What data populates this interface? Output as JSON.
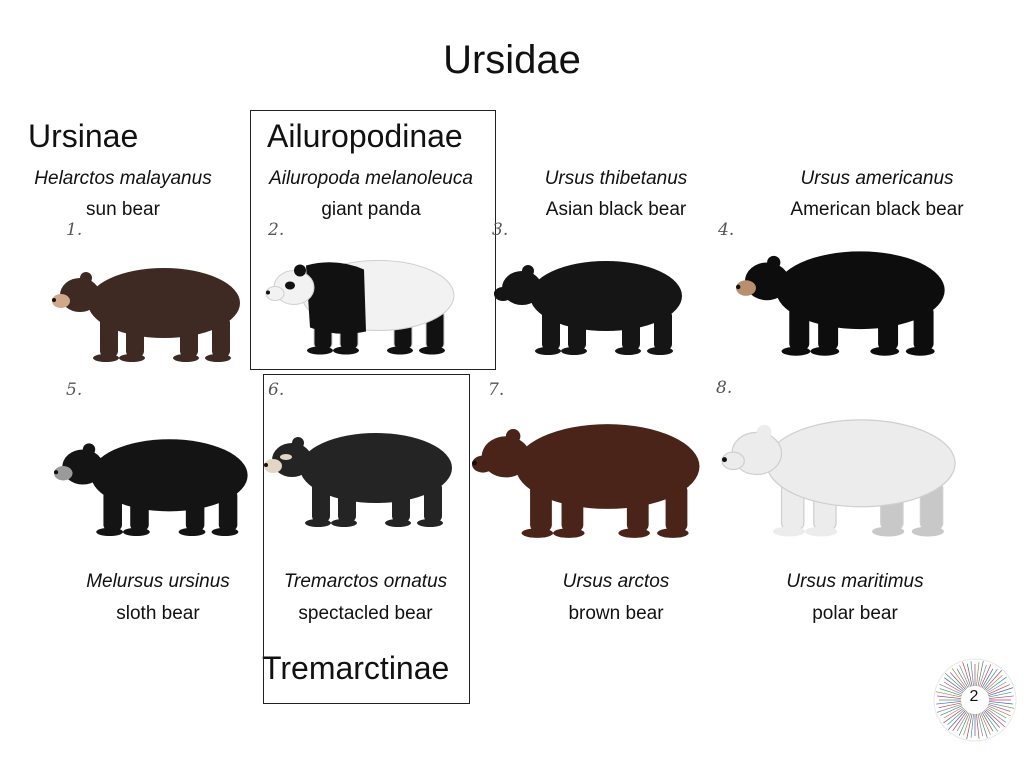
{
  "slide": {
    "title": "Ursidae",
    "page_number": "2"
  },
  "subfamilies": {
    "ursinae": "Ursinae",
    "ailuropodinae": "Ailuropodinae",
    "tremarctinae": "Tremarctinae"
  },
  "species": [
    {
      "number": "1.",
      "scientific": "Helarctos malayanus",
      "common": "sun bear",
      "fur": "#3e2a22",
      "snout": "#cfa98a"
    },
    {
      "number": "2.",
      "scientific": "Ailuropoda melanoleuca",
      "common": "giant panda",
      "fur": "#f2f2f2",
      "snout": "#f2f2f2"
    },
    {
      "number": "3.",
      "scientific": "Ursus thibetanus",
      "common": "Asian black bear",
      "fur": "#151515",
      "snout": "#151515"
    },
    {
      "number": "4.",
      "scientific": "Ursus americanus",
      "common": "American black bear",
      "fur": "#0d0d0d",
      "snout": "#b89070"
    },
    {
      "number": "5.",
      "scientific": "Melursus ursinus",
      "common": "sloth bear",
      "fur": "#141414",
      "snout": "#9a9a9a"
    },
    {
      "number": "6.",
      "scientific": "Tremarctos ornatus",
      "common": "spectacled bear",
      "fur": "#242424",
      "snout": "#e2d6c4"
    },
    {
      "number": "7.",
      "scientific": "Ursus arctos",
      "common": "brown bear",
      "fur": "#4a2418",
      "snout": "#4a2418"
    },
    {
      "number": "8.",
      "scientific": "Ursus maritimus",
      "common": "polar bear",
      "fur": "#ececec",
      "snout": "#ececec"
    }
  ]
}
